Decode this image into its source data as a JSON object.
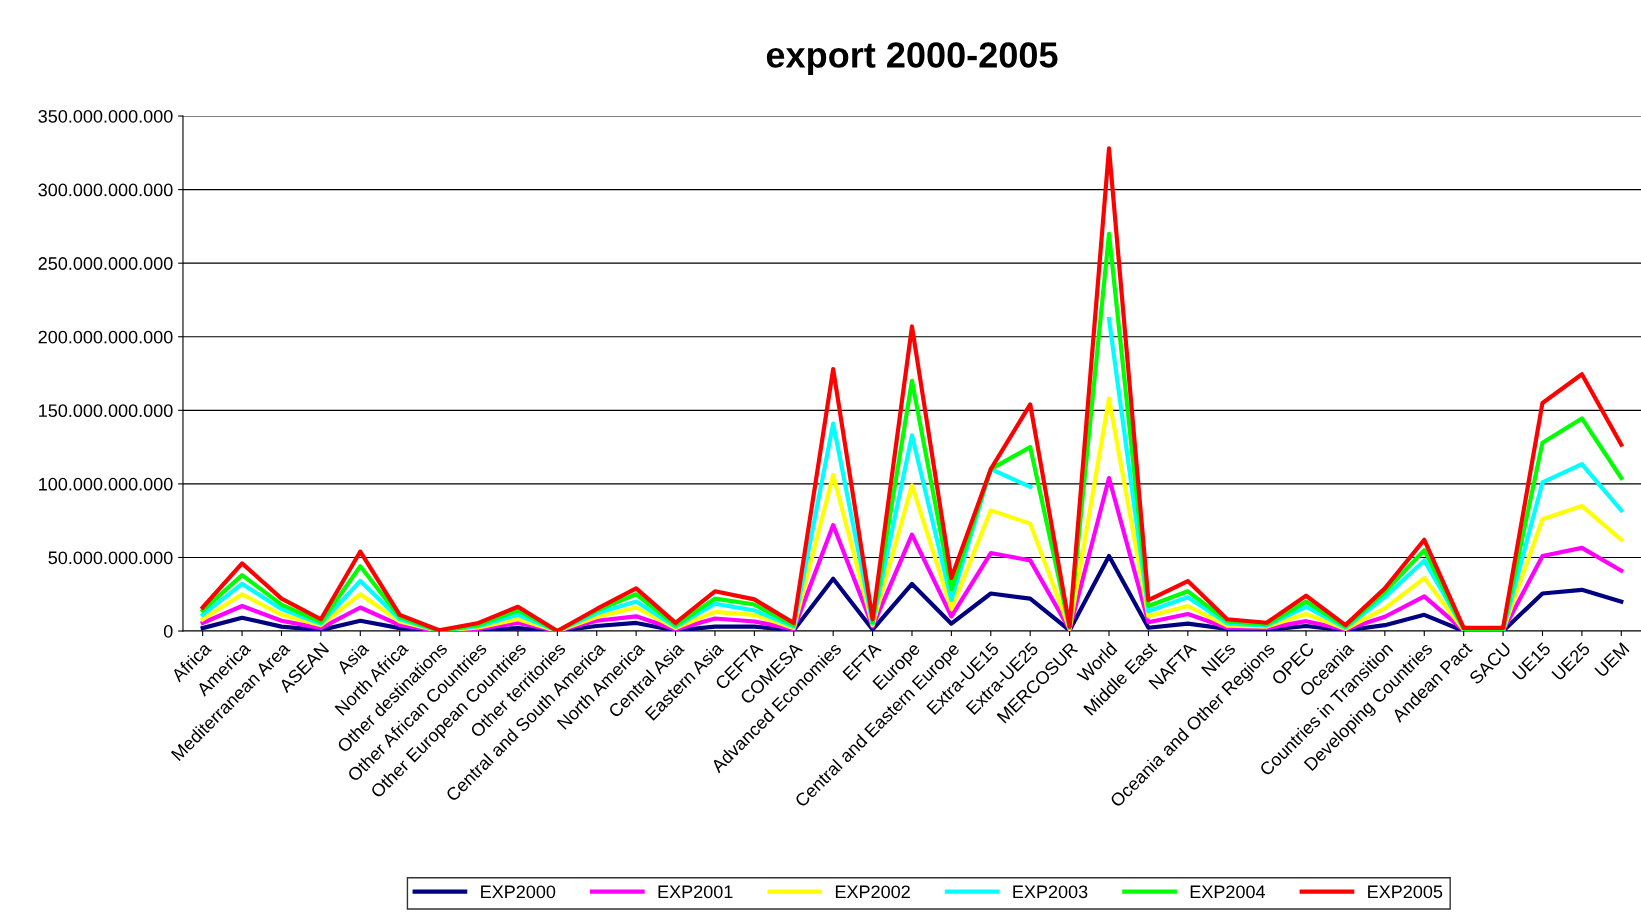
{
  "chart_data": {
    "type": "line",
    "title": "export 2000-2005",
    "categories": [
      "Africa",
      "America",
      "Mediterranean Area",
      "ASEAN",
      "Asia",
      "North Africa",
      "Other destinations",
      "Other African Countries",
      "Other European Countries",
      "Other territories",
      "Central and South America",
      "North America",
      "Central Asia",
      "Eastern Asia",
      "CEFTA",
      "COMESA",
      "Advanced Economies",
      "EFTA",
      "Europe",
      "Central and Eastern Europe",
      "Extra-UE15",
      "Extra-UE25",
      "MERCOSUR",
      "World",
      "Middle East",
      "NAFTA",
      "NIEs",
      "Oceania and Other Regions",
      "OPEC",
      "Oceania",
      "Countries in Transition",
      "Developing Countries",
      "Andean Pact",
      "SACU",
      "UE15",
      "UE25",
      "UEM"
    ],
    "series": [
      {
        "name": "EXP2000",
        "color": "#000080",
        "values": [
          2000000000.0,
          9000000000.0,
          3000000000.0,
          600000000.0,
          7000000000.0,
          2000000000.0,
          0,
          600000000.0,
          2000000000.0,
          0,
          3400000000.0,
          5500000000.0,
          300000000.0,
          3000000000.0,
          3000000000.0,
          600000000.0,
          35600000000.0,
          1000000000.0,
          32000000000.0,
          5000000000.0,
          25500000000.0,
          22000000000.0,
          400000000.0,
          51000000000.0,
          2200000000.0,
          5000000000.0,
          1500000000.0,
          700000000.0,
          3400000000.0,
          400000000.0,
          4000000000.0,
          11000000000.0,
          0,
          0,
          25500000000.0,
          28000000000.0,
          20000000000.0
        ]
      },
      {
        "name": "EXP2001",
        "color": "#ff00ff",
        "values": [
          5500000000.0,
          17000000000.0,
          7000000000.0,
          2000000000.0,
          16000000000.0,
          4000000000.0,
          0,
          1500000000.0,
          5500000000.0,
          0,
          7000000000.0,
          10000000000.0,
          1000000000.0,
          8500000000.0,
          6500000000.0,
          1200000000.0,
          72000000000.0,
          3000000000.0,
          65500000000.0,
          10000000000.0,
          53000000000.0,
          48000000000.0,
          1000000000.0,
          104000000000.0,
          6000000000.0,
          11600000000.0,
          2200000000.0,
          1900000000.0,
          6700000000.0,
          1000000000.0,
          9700000000.0,
          23600000000.0,
          400000000.0,
          300000000.0,
          51000000000.0,
          56500000000.0,
          41000000000.0
        ]
      },
      {
        "name": "EXP2002",
        "color": "#ffff00",
        "values": [
          8000000000.0,
          25000000000.0,
          11000000000.0,
          4000000000.0,
          25000000000.0,
          6500000000.0,
          0,
          2500000000.0,
          8000000000.0,
          0,
          9500000000.0,
          16000000000.0,
          2000000000.0,
          13000000000.0,
          11000000000.0,
          2000000000.0,
          106000000000.0,
          4000000000.0,
          99000000000.0,
          15000000000.0,
          82000000000.0,
          73000000000.0,
          1500000000.0,
          158000000000.0,
          10000000000.0,
          17000000000.0,
          3700000000.0,
          3000000000.0,
          11600000000.0,
          1500000000.0,
          15400000000.0,
          36000000000.0,
          700000000.0,
          500000000.0,
          76000000000.0,
          85000000000.0,
          62000000000.0
        ]
      },
      {
        "name": "EXP2003",
        "color": "#00ffff",
        "values": [
          11000000000.0,
          32000000000.0,
          15000000000.0,
          5000000000.0,
          34000000000.0,
          8000000000.0,
          0,
          3400000000.0,
          11000000000.0,
          0,
          12000000000.0,
          20000000000.0,
          3000000000.0,
          18500000000.0,
          14000000000.0,
          3000000000.0,
          141000000000.0,
          5000000000.0,
          133000000000.0,
          21000000000.0,
          110000000000.0,
          98000000000.0,
          null,
          212000000000.0,
          13500000000.0,
          23000000000.0,
          5200000000.0,
          3700000000.0,
          16500000000.0,
          2200000000.0,
          23000000000.0,
          48000000000.0,
          1500000000.0,
          500000000.0,
          101000000000.0,
          113500000000.0,
          82000000000.0
        ]
      },
      {
        "name": "EXP2004",
        "color": "#00ff00",
        "values": [
          14000000000.0,
          38000000000.0,
          18000000000.0,
          6000000000.0,
          44000000000.0,
          9500000000.0,
          0,
          4300000000.0,
          14000000000.0,
          0,
          14000000000.0,
          25000000000.0,
          4000000000.0,
          22000000000.0,
          18000000000.0,
          4000000000.0,
          null,
          6000000000.0,
          170000000000.0,
          28500000000.0,
          110000000000.0,
          125000000000.0,
          2200000000.0,
          270000000000.0,
          17000000000.0,
          27000000000.0,
          6700000000.0,
          4500000000.0,
          20000000000.0,
          3000000000.0,
          26600000000.0,
          55000000000.0,
          1500000000.0,
          1500000000.0,
          128000000000.0,
          144500000000.0,
          104000000000.0
        ]
      },
      {
        "name": "EXP2005",
        "color": "#ff0000",
        "values": [
          16000000000.0,
          46000000000.0,
          22000000000.0,
          8000000000.0,
          54000000000.0,
          11000000000.0,
          500000000.0,
          5500000000.0,
          16500000000.0,
          0,
          15000000000.0,
          29000000000.0,
          5500000000.0,
          27000000000.0,
          21500000000.0,
          5500000000.0,
          178000000000.0,
          8000000000.0,
          207000000000.0,
          36000000000.0,
          110000000000.0,
          154000000000.0,
          3000000000.0,
          328000000000.0,
          21000000000.0,
          34000000000.0,
          8000000000.0,
          5600000000.0,
          24000000000.0,
          4000000000.0,
          29000000000.0,
          62000000000.0,
          2200000000.0,
          2200000000.0,
          155000000000.0,
          174500000000.0,
          126600000000.0
        ]
      }
    ],
    "ylim": [
      0,
      350000000000
    ],
    "yticks": [
      0,
      {
        "value": 50000000000,
        "label": "50.000.000.000"
      },
      {
        "value": 100000000000,
        "label": "100.000.000.000"
      },
      {
        "value": 150000000000,
        "label": "150.000.000.000"
      },
      {
        "value": 200000000000,
        "label": "200.000.000.000"
      },
      {
        "value": 250000000000,
        "label": "250.000.000.000"
      },
      {
        "value": 300000000000,
        "label": "300.000.000.000"
      },
      {
        "value": 350000000000,
        "label": "350.000.000.000"
      }
    ],
    "grid": "y",
    "legend": "bottom",
    "marker": "none",
    "line_style": "solid"
  }
}
